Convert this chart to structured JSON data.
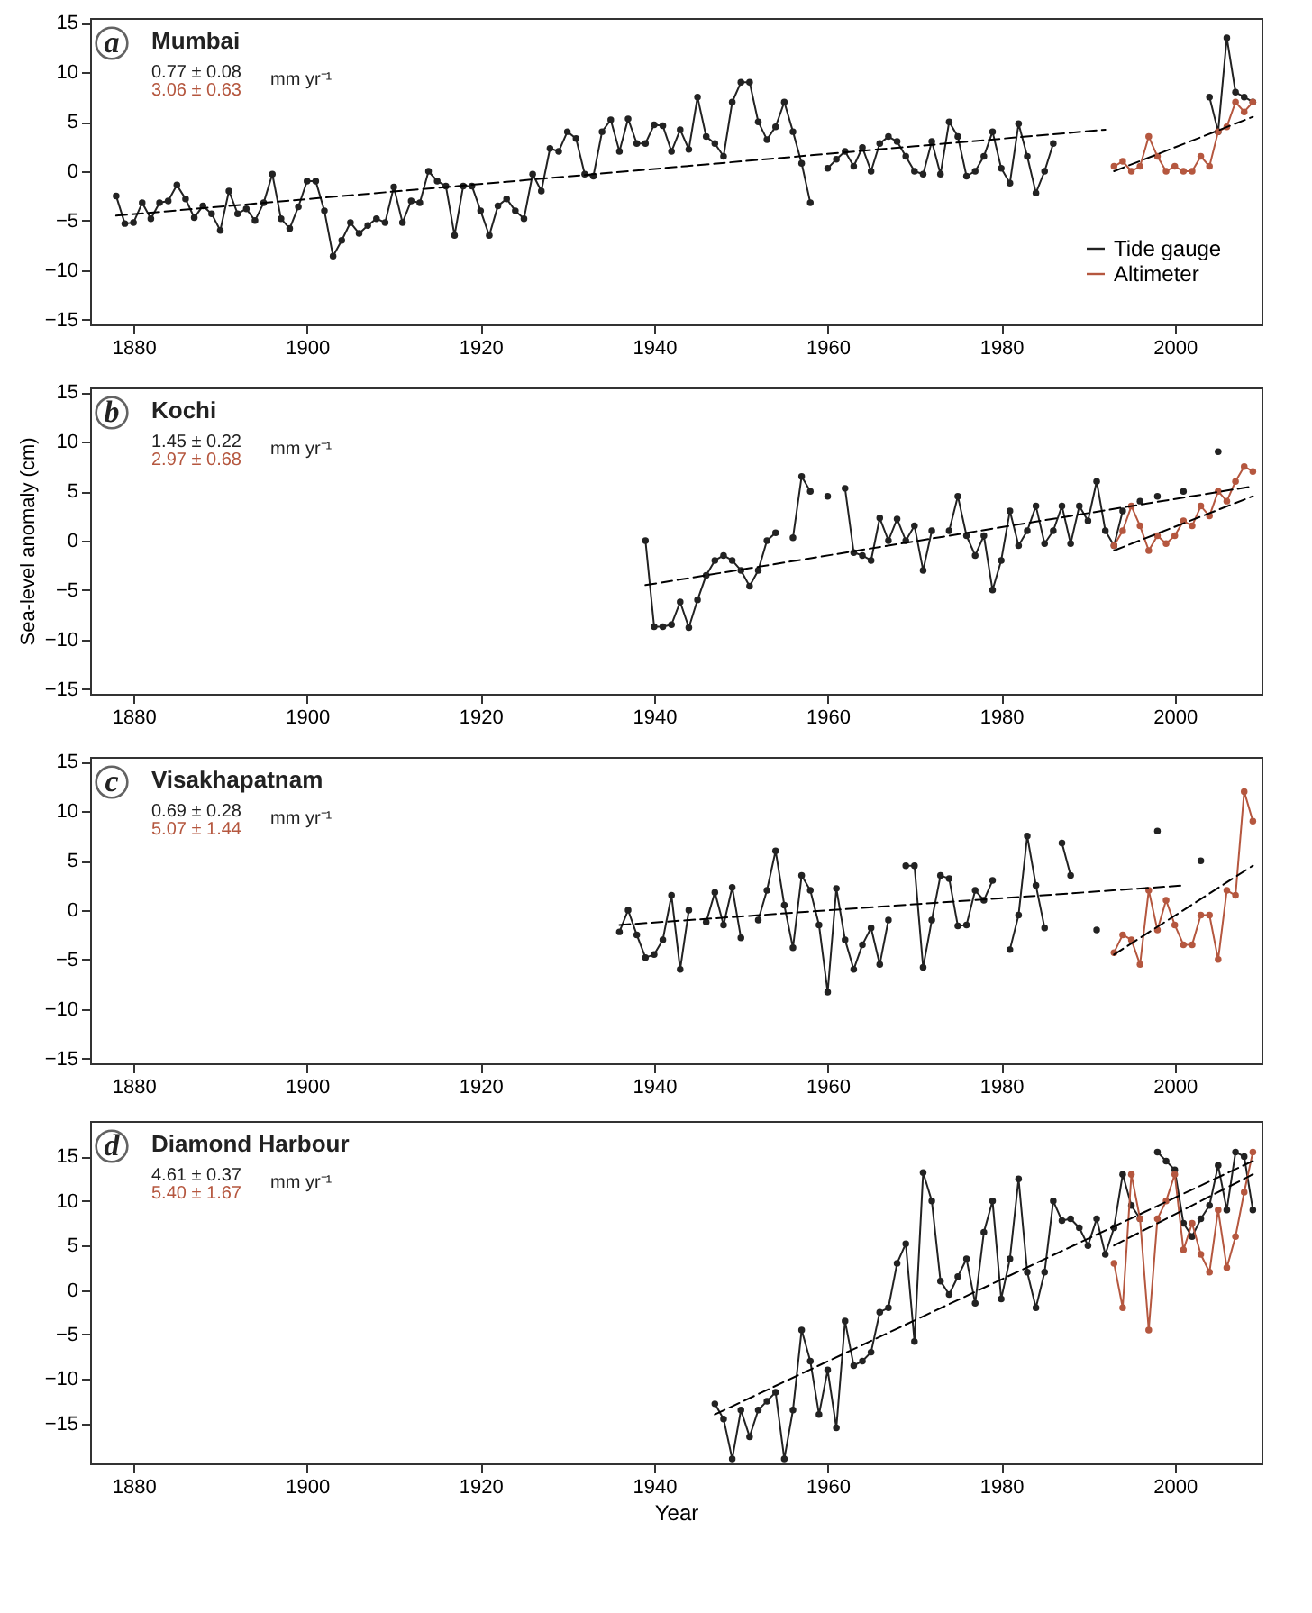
{
  "chart_data": [
    {
      "type": "line",
      "title": "Mumbai",
      "annotations": [
        "a",
        "0.77 ± 0.08",
        "3.06 ± 0.63",
        "mm yr⁻¹"
      ],
      "xlim": [
        1875,
        2010
      ],
      "xticks": [
        1880,
        1900,
        1920,
        1940,
        1960,
        1980,
        2000
      ],
      "ylim": [
        -15.5,
        15.5
      ],
      "yticks": [
        -15,
        -10,
        -5,
        0,
        5,
        10,
        15
      ],
      "marker": "circle",
      "legend": "bottom right",
      "grid": false,
      "series": [
        {
          "name": "Tide gauge",
          "color": "#222222",
          "x": [
            1878,
            1879,
            1880,
            1881,
            1882,
            1883,
            1884,
            1885,
            1886,
            1887,
            1888,
            1889,
            1890,
            1891,
            1892,
            1893,
            1894,
            1895,
            1896,
            1897,
            1898,
            1899,
            1900,
            1901,
            1902,
            1903,
            1904,
            1905,
            1906,
            1907,
            1908,
            1909,
            1910,
            1911,
            1912,
            1913,
            1914,
            1915,
            1916,
            1917,
            1918,
            1919,
            1920,
            1921,
            1922,
            1923,
            1924,
            1925,
            1926,
            1927,
            1928,
            1929,
            1930,
            1931,
            1932,
            1933,
            1934,
            1935,
            1936,
            1937,
            1938,
            1939,
            1940,
            1941,
            1942,
            1943,
            1944,
            1945,
            1946,
            1947,
            1948,
            1949,
            1950,
            1951,
            1952,
            1953,
            1954,
            1955,
            1956,
            1957,
            1958,
            1959,
            1960,
            1961,
            1962,
            1963,
            1964,
            1965,
            1966,
            1967,
            1968,
            1969,
            1970,
            1971,
            1972,
            1973,
            1974,
            1975,
            1976,
            1977,
            1978,
            1979,
            1980,
            1981,
            1982,
            1983,
            1984,
            1985,
            1986,
            1995,
            2004,
            2005,
            2006,
            2007,
            2008,
            2009
          ],
          "values": [
            -2.5,
            -5.3,
            -5.2,
            -3.2,
            -4.8,
            -3.2,
            -3.0,
            -1.4,
            -2.8,
            -4.7,
            -3.5,
            -4.3,
            -6.0,
            -2.0,
            -4.3,
            -3.8,
            -5.0,
            -3.2,
            -0.3,
            -4.8,
            -5.8,
            -3.6,
            -1.0,
            -1.0,
            -4.0,
            -8.6,
            -7.0,
            -5.2,
            -6.3,
            -5.5,
            -4.8,
            -5.2,
            -1.6,
            -5.2,
            -3.0,
            -3.2,
            0.0,
            -1.0,
            -1.5,
            -6.5,
            -1.5,
            -1.5,
            -4.0,
            -6.5,
            -3.5,
            -2.8,
            -4.0,
            -4.8,
            -0.3,
            -2.0,
            2.3,
            2.0,
            4.0,
            3.3,
            -0.3,
            -0.5,
            4.0,
            5.2,
            2.0,
            5.3,
            2.8,
            2.8,
            4.7,
            4.6,
            2.0,
            4.2,
            2.2,
            7.5,
            3.5,
            2.8,
            1.5,
            7.0,
            9.0,
            9.0,
            5.0,
            3.2,
            4.5,
            7.0,
            4.0,
            0.8,
            -3.2,
            null,
            0.3,
            1.2,
            2.0,
            0.5,
            2.4,
            0.0,
            2.8,
            3.5,
            3.0,
            1.5,
            0.0,
            -0.3,
            3.0,
            -0.3,
            5.0,
            3.5,
            -0.5,
            0.0,
            1.5,
            4.0,
            0.3,
            -1.2,
            4.8,
            1.5,
            -2.2,
            0.0,
            2.8,
            null,
            7.5,
            4.0,
            13.5,
            8.0,
            7.5,
            7.0
          ]
        },
        {
          "name": "Altimeter",
          "color": "#b5573f",
          "x": [
            1993,
            1994,
            1995,
            1996,
            1997,
            1998,
            1999,
            2000,
            2001,
            2002,
            2003,
            2004,
            2005,
            2006,
            2007,
            2008,
            2009
          ],
          "values": [
            0.5,
            1.0,
            0.0,
            0.5,
            3.5,
            1.5,
            0.0,
            0.5,
            0.0,
            0.0,
            1.5,
            0.5,
            4.0,
            4.5,
            7.0,
            6.0,
            7.0
          ]
        },
        {
          "type": "line",
          "color": "#000000",
          "line_style": "dashed",
          "marker": "none",
          "x": [
            1878,
            1992
          ],
          "values": [
            -4.5,
            4.2
          ]
        },
        {
          "type": "line",
          "color": "#000000",
          "line_style": "dashed",
          "marker": "none",
          "x": [
            1993,
            2009
          ],
          "values": [
            0.0,
            5.5
          ]
        }
      ]
    },
    {
      "type": "line",
      "title": "Kochi",
      "ylabel": "Sea-level anomaly (cm)",
      "annotations": [
        "b",
        "1.45 ± 0.22",
        "2.97 ± 0.68",
        "mm yr⁻¹"
      ],
      "xlim": [
        1875,
        2010
      ],
      "xticks": [
        1880,
        1900,
        1920,
        1940,
        1960,
        1980,
        2000
      ],
      "ylim": [
        -15.5,
        15.5
      ],
      "yticks": [
        -15,
        -10,
        -5,
        0,
        5,
        10,
        15
      ],
      "marker": "circle",
      "grid": false,
      "series": [
        {
          "color": "#222222",
          "x": [
            1939,
            1940,
            1941,
            1942,
            1943,
            1944,
            1945,
            1946,
            1947,
            1948,
            1949,
            1950,
            1951,
            1952,
            1953,
            1954,
            1955,
            1956,
            1957,
            1958,
            1959,
            1960,
            1961,
            1962,
            1963,
            1964,
            1965,
            1966,
            1967,
            1968,
            1969,
            1970,
            1971,
            1972,
            1973,
            1974,
            1975,
            1976,
            1977,
            1978,
            1979,
            1980,
            1981,
            1982,
            1983,
            1984,
            1985,
            1986,
            1987,
            1988,
            1989,
            1990,
            1991,
            1992,
            1993,
            1994,
            1995,
            1996,
            1997,
            1998,
            1999,
            2000,
            2001,
            2002,
            2003,
            2004,
            2005
          ],
          "values": [
            0.0,
            -8.7,
            -8.7,
            -8.5,
            -6.2,
            -8.8,
            -6.0,
            -3.5,
            -2.0,
            -1.5,
            -2.0,
            -3.0,
            -4.6,
            -3.0,
            0.0,
            0.8,
            null,
            0.3,
            6.5,
            5.0,
            null,
            4.5,
            null,
            5.3,
            -1.2,
            -1.5,
            -2.0,
            2.3,
            0.0,
            2.2,
            0.0,
            1.5,
            -3.0,
            1.0,
            null,
            1.0,
            4.5,
            0.5,
            -1.5,
            0.5,
            -5.0,
            -2.0,
            3.0,
            -0.5,
            1.0,
            3.5,
            -0.3,
            1.0,
            3.5,
            -0.3,
            3.5,
            2.0,
            6.0,
            1.0,
            -0.5,
            3.0,
            null,
            4.0,
            null,
            4.5,
            null,
            null,
            5.0,
            null,
            null,
            null,
            9.0
          ]
        },
        {
          "color": "#b5573f",
          "x": [
            1993,
            1994,
            1995,
            1996,
            1997,
            1998,
            1999,
            2000,
            2001,
            2002,
            2003,
            2004,
            2005,
            2006,
            2007,
            2008,
            2009
          ],
          "values": [
            -0.5,
            1.0,
            3.5,
            1.5,
            -1.0,
            0.5,
            -0.3,
            0.5,
            2.0,
            1.5,
            3.5,
            2.5,
            5.0,
            4.0,
            6.0,
            7.5,
            7.0
          ]
        },
        {
          "type": "line",
          "color": "#000000",
          "line_style": "dashed",
          "marker": "none",
          "x": [
            1939,
            2009
          ],
          "values": [
            -4.5,
            5.5
          ]
        },
        {
          "type": "line",
          "color": "#000000",
          "line_style": "dashed",
          "marker": "none",
          "x": [
            1993,
            2009
          ],
          "values": [
            -1.0,
            4.5
          ]
        }
      ]
    },
    {
      "type": "line",
      "title": "Visakhapatnam",
      "annotations": [
        "c",
        "0.69 ± 0.28",
        "5.07 ± 1.44",
        "mm yr⁻¹"
      ],
      "xlim": [
        1875,
        2010
      ],
      "xticks": [
        1880,
        1900,
        1920,
        1940,
        1960,
        1980,
        2000
      ],
      "ylim": [
        -15.5,
        15.5
      ],
      "yticks": [
        -15,
        -10,
        -5,
        0,
        5,
        10,
        15
      ],
      "marker": "circle",
      "grid": false,
      "series": [
        {
          "color": "#222222",
          "x": [
            1936,
            1937,
            1938,
            1939,
            1940,
            1941,
            1942,
            1943,
            1944,
            1945,
            1946,
            1947,
            1948,
            1949,
            1950,
            1951,
            1952,
            1953,
            1954,
            1955,
            1956,
            1957,
            1958,
            1959,
            1960,
            1961,
            1962,
            1963,
            1964,
            1965,
            1966,
            1967,
            1968,
            1969,
            1970,
            1971,
            1972,
            1973,
            1974,
            1975,
            1976,
            1977,
            1978,
            1979,
            1980,
            1981,
            1982,
            1983,
            1984,
            1985,
            1986,
            1987,
            1988,
            1989,
            1990,
            1991,
            1992,
            1993,
            1994,
            1995,
            1996,
            1997,
            1998,
            1999,
            2000,
            2001,
            2002,
            2003
          ],
          "values": [
            -2.2,
            0.0,
            -2.5,
            -4.8,
            -4.5,
            -3.0,
            1.5,
            -6.0,
            0.0,
            null,
            -1.2,
            1.8,
            -1.5,
            2.3,
            -2.8,
            null,
            -1.0,
            2.0,
            6.0,
            0.5,
            -3.8,
            3.5,
            2.0,
            -1.5,
            -8.3,
            2.2,
            -3.0,
            -6.0,
            -3.5,
            -1.8,
            -5.5,
            -1.0,
            null,
            4.5,
            4.5,
            -5.8,
            -1.0,
            3.5,
            3.2,
            -1.6,
            -1.5,
            2.0,
            1.0,
            3.0,
            null,
            -4.0,
            -0.5,
            7.5,
            2.5,
            -1.8,
            null,
            6.8,
            3.5,
            null,
            null,
            -2.0,
            null,
            null,
            null,
            null,
            null,
            null,
            8.0,
            null,
            null,
            null,
            null,
            5.0
          ]
        },
        {
          "color": "#b5573f",
          "x": [
            1993,
            1994,
            1995,
            1996,
            1997,
            1998,
            1999,
            2000,
            2001,
            2002,
            2003,
            2004,
            2005,
            2006,
            2007,
            2008,
            2009
          ],
          "values": [
            -4.3,
            -2.5,
            -3.0,
            -5.5,
            2.0,
            -2.0,
            1.0,
            -1.5,
            -3.5,
            -3.5,
            -0.5,
            -0.5,
            -5.0,
            2.0,
            1.5,
            12.0,
            9.0
          ]
        },
        {
          "type": "line",
          "color": "#000000",
          "line_style": "dashed",
          "marker": "none",
          "x": [
            1936,
            2001
          ],
          "values": [
            -1.5,
            2.5
          ]
        },
        {
          "type": "line",
          "color": "#000000",
          "line_style": "dashed",
          "marker": "none",
          "x": [
            1993,
            2009
          ],
          "values": [
            -4.5,
            4.5
          ]
        }
      ]
    },
    {
      "type": "line",
      "title": "Diamond Harbour",
      "xlabel": "Year",
      "annotations": [
        "d",
        "4.61 ± 0.37",
        "5.40 ± 1.67",
        "mm yr⁻¹"
      ],
      "xlim": [
        1875,
        2010
      ],
      "xticks": [
        1880,
        1900,
        1920,
        1940,
        1960,
        1980,
        2000
      ],
      "ylim": [
        -19.5,
        19
      ],
      "yticks": [
        -15,
        -10,
        -5,
        0,
        5,
        10,
        15
      ],
      "marker": "circle",
      "grid": false,
      "series": [
        {
          "color": "#222222",
          "x": [
            1947,
            1948,
            1949,
            1950,
            1951,
            1952,
            1953,
            1954,
            1955,
            1956,
            1957,
            1958,
            1959,
            1960,
            1961,
            1962,
            1963,
            1964,
            1965,
            1966,
            1967,
            1968,
            1969,
            1970,
            1971,
            1972,
            1973,
            1974,
            1975,
            1976,
            1977,
            1978,
            1979,
            1980,
            1981,
            1982,
            1983,
            1984,
            1985,
            1986,
            1987,
            1988,
            1989,
            1990,
            1991,
            1992,
            1993,
            1994,
            1995,
            1996,
            1997,
            1998,
            1999,
            2000,
            2001,
            2002,
            2003,
            2004,
            2005,
            2006,
            2007,
            2008,
            2009
          ],
          "values": [
            -12.8,
            -14.5,
            -19,
            -13.5,
            -16.5,
            -13.5,
            -12.5,
            -11.5,
            -19,
            -13.5,
            -4.5,
            -8.0,
            -14.0,
            -9.0,
            -15.5,
            -3.5,
            -8.5,
            -8.0,
            -7.0,
            -2.5,
            -2.0,
            3.0,
            5.2,
            -5.8,
            13.2,
            10.0,
            1.0,
            -0.5,
            1.5,
            3.5,
            -1.5,
            6.5,
            10.0,
            -1.0,
            3.5,
            12.5,
            2.0,
            -2.0,
            2.0,
            10.0,
            7.8,
            8.0,
            7.0,
            5.0,
            8.0,
            4.0,
            7.0,
            13.0,
            9.5,
            8.0,
            null,
            15.5,
            14.5,
            13.5,
            7.5,
            6.0,
            8.0,
            9.5,
            14.0,
            9.0,
            15.5,
            15.0,
            9.0
          ]
        },
        {
          "color": "#b5573f",
          "x": [
            1993,
            1994,
            1995,
            1996,
            1997,
            1998,
            1999,
            2000,
            2001,
            2002,
            2003,
            2004,
            2005,
            2006,
            2007,
            2008,
            2009
          ],
          "values": [
            3.0,
            -2.0,
            13.0,
            8.0,
            -4.5,
            8.0,
            10.0,
            13.0,
            4.5,
            7.5,
            4.0,
            2.0,
            9.0,
            2.5,
            6.0,
            11.0,
            15.5
          ]
        },
        {
          "type": "line",
          "color": "#000000",
          "line_style": "dashed",
          "marker": "none",
          "x": [
            1947,
            2009
          ],
          "values": [
            -14.0,
            14.5
          ]
        },
        {
          "type": "line",
          "color": "#000000",
          "line_style": "dashed",
          "marker": "none",
          "x": [
            1993,
            2009
          ],
          "values": [
            5.0,
            13.0
          ]
        }
      ]
    }
  ]
}
